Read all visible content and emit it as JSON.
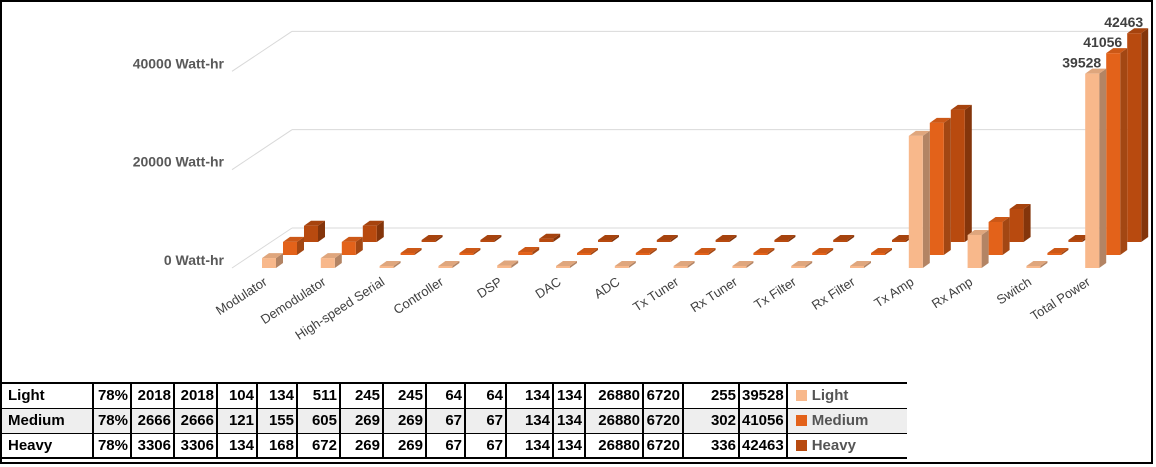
{
  "chart_data": {
    "type": "bar",
    "title": "",
    "xlabel": "",
    "ylabel": "",
    "ylim": [
      0,
      48000
    ],
    "yticks": [
      0,
      20000,
      40000
    ],
    "ytick_labels": [
      "0 Watt-hr",
      "20000 Watt-hr",
      "40000 Watt-hr"
    ],
    "categories": [
      "Modulator",
      "Demodulator",
      "High-speed Serial",
      "Controller",
      "DSP",
      "DAC",
      "ADC",
      "Tx Tuner",
      "Rx Tuner",
      "Tx Filter",
      "Rx Filter",
      "Tx Amp",
      "Rx Amp",
      "Switch",
      "Total Power"
    ],
    "series": [
      {
        "name": "Light",
        "values": [
          2018,
          2018,
          104,
          134,
          511,
          245,
          245,
          64,
          64,
          134,
          134,
          26880,
          6720,
          255,
          39528
        ]
      },
      {
        "name": "Medium",
        "values": [
          2666,
          2666,
          121,
          155,
          605,
          269,
          269,
          67,
          67,
          134,
          134,
          26880,
          6720,
          302,
          41056
        ]
      },
      {
        "name": "Heavy",
        "values": [
          3306,
          3306,
          134,
          168,
          672,
          269,
          269,
          67,
          67,
          134,
          134,
          26880,
          6720,
          336,
          42463
        ]
      }
    ],
    "data_labels": [
      "39528",
      "41056",
      "42463"
    ],
    "colors": {
      "Light": "#f8b88b",
      "Medium": "#e3621a",
      "Heavy": "#b84a0f"
    },
    "grid": true,
    "legend": "bottom-right",
    "table": {
      "rows": [
        {
          "label": "Light",
          "cells": [
            "78%",
            "2018",
            "2018",
            "104",
            "134",
            "511",
            "245",
            "245",
            "64",
            "64",
            "134",
            "134",
            "26880",
            "6720",
            "255",
            "39528"
          ]
        },
        {
          "label": "Medium",
          "cells": [
            "78%",
            "2666",
            "2666",
            "121",
            "155",
            "605",
            "269",
            "269",
            "67",
            "67",
            "134",
            "134",
            "26880",
            "6720",
            "302",
            "41056"
          ]
        },
        {
          "label": "Heavy",
          "cells": [
            "78%",
            "3306",
            "3306",
            "134",
            "168",
            "672",
            "269",
            "269",
            "67",
            "67",
            "134",
            "134",
            "26880",
            "6720",
            "336",
            "42463"
          ]
        }
      ]
    }
  }
}
